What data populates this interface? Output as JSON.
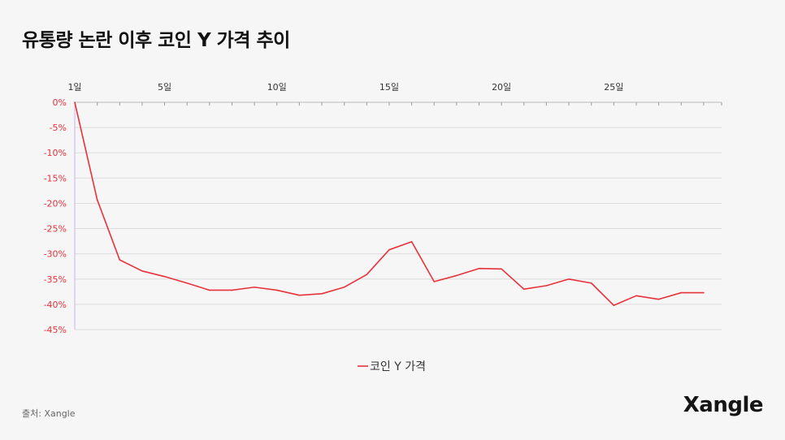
{
  "title": "유통량 논란 이후 코인 Y 가격 추이",
  "source": "출처: Xangle",
  "brand": "Xangle",
  "colors": {
    "series": "#e8323a",
    "axis_text": "#e8323a",
    "grid": "#dcdcdc",
    "axis": "#c8b4e6",
    "x_text": "#333333"
  },
  "chart_data": {
    "type": "line",
    "x": [
      1,
      2,
      3,
      4,
      5,
      6,
      7,
      8,
      9,
      10,
      11,
      12,
      13,
      14,
      15,
      16,
      17,
      18,
      19,
      20,
      21,
      22,
      23,
      24,
      25,
      26,
      27,
      28,
      29
    ],
    "x_ticks": [
      1,
      5,
      10,
      15,
      20,
      25
    ],
    "x_tick_labels": [
      "1일",
      "5일",
      "10일",
      "15일",
      "20일",
      "25일"
    ],
    "xlim": [
      1,
      29.8
    ],
    "y_ticks": [
      0,
      -5,
      -10,
      -15,
      -20,
      -25,
      -30,
      -35,
      -40,
      -45
    ],
    "y_tick_labels": [
      "0%",
      "-5%",
      "-10%",
      "-15%",
      "-20%",
      "-25%",
      "-30%",
      "-35%",
      "-40%",
      "-45%"
    ],
    "ylim": [
      -45,
      0
    ],
    "series": [
      {
        "name": "코인 Y 가격",
        "values": [
          0,
          -19.3,
          -31.2,
          -33.4,
          -34.5,
          -35.8,
          -37.2,
          -37.2,
          -36.6,
          -37.2,
          -38.2,
          -37.9,
          -36.6,
          -34.1,
          -29.2,
          -27.6,
          -35.5,
          -34.3,
          -32.9,
          -33.0,
          -37.0,
          -36.3,
          -35.0,
          -35.8,
          -40.2,
          -38.3,
          -39.0,
          -37.7,
          -37.7
        ]
      }
    ],
    "grid": true,
    "legend": "bottom-center"
  }
}
